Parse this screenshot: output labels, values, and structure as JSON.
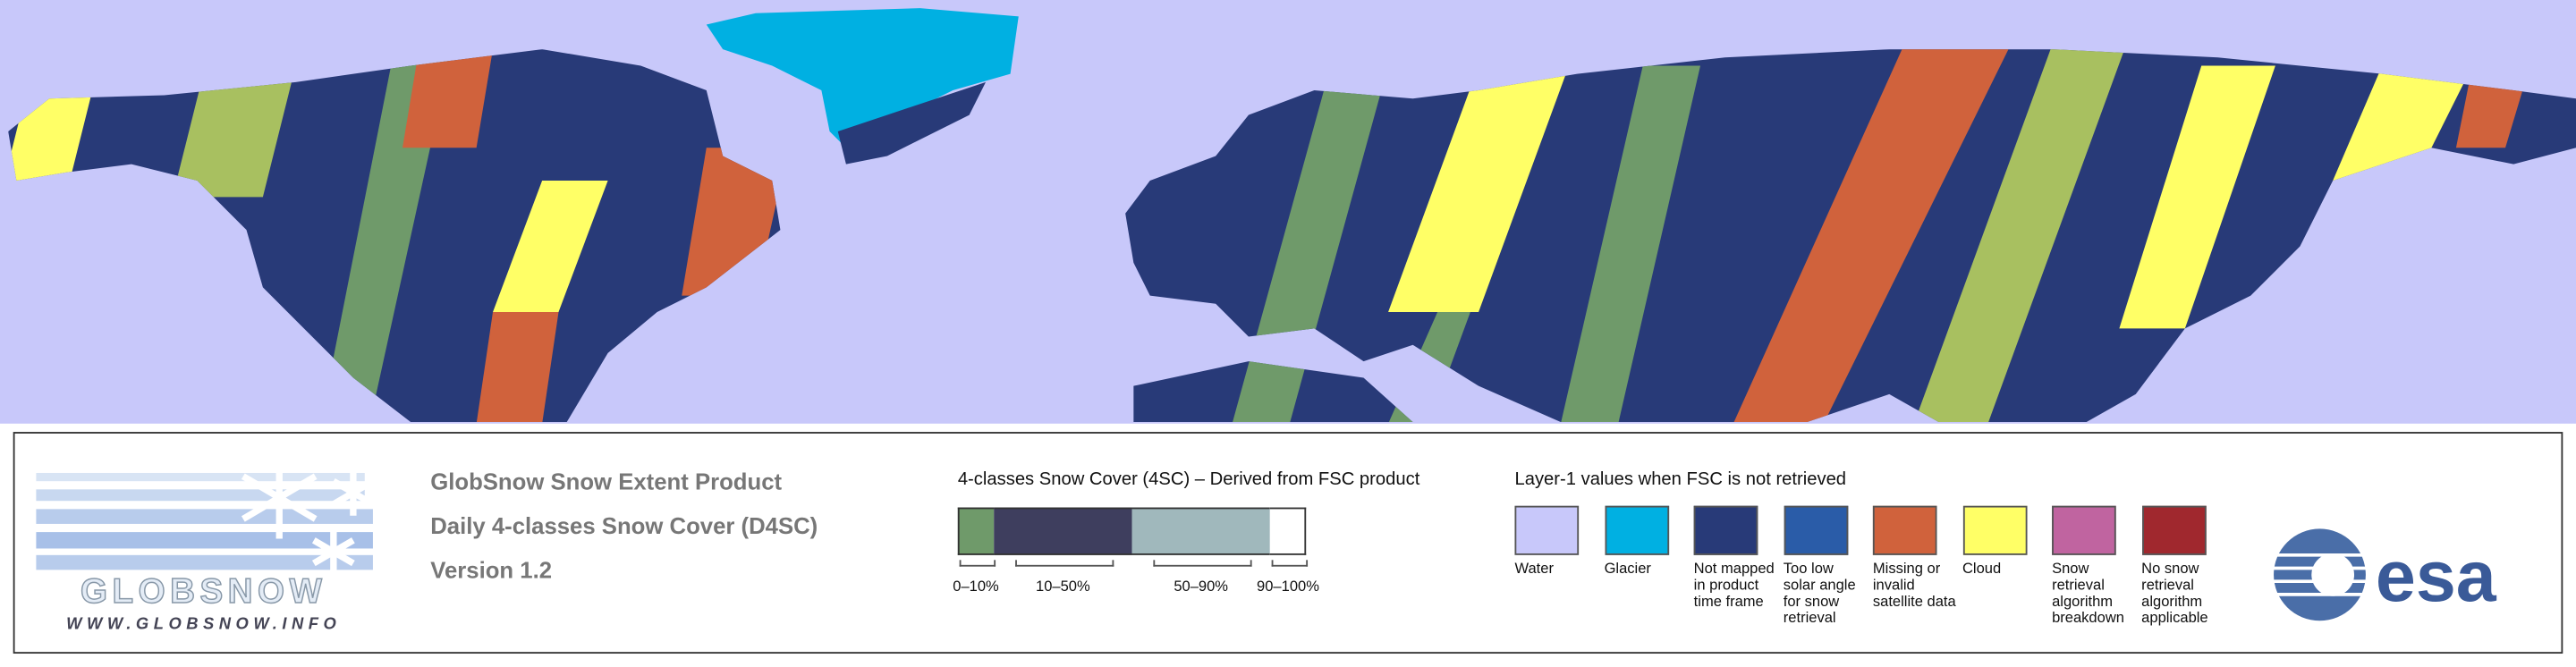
{
  "legend": {
    "logo": {
      "name": "GLOBSNOW",
      "url": "WWW.GLOBSNOW.INFO"
    },
    "product": {
      "lines": [
        "GlobSnow Snow Extent Product",
        "Daily 4-classes Snow Cover (D4SC)",
        "Version 1.2"
      ]
    },
    "classes_4sc": {
      "title": "4-classes Snow Cover (4SC) – Derived from FSC product",
      "items": [
        {
          "label": "0–10%",
          "color": "#6f9a6a"
        },
        {
          "label": "10–50%",
          "color": "#3e3e5e"
        },
        {
          "label": "50–90%",
          "color": "#a0b8bc"
        },
        {
          "label": "90–100%",
          "color": "#ffffff"
        }
      ]
    },
    "layer1": {
      "title": "Layer-1 values when FSC is not retrieved",
      "items": [
        {
          "label": "Water",
          "color": "#c8c8fa"
        },
        {
          "label": "Glacier",
          "color": "#00b0e2"
        },
        {
          "label": "Not mapped in product time frame",
          "color": "#283a78"
        },
        {
          "label": "Too low solar angle for snow retrieval",
          "color": "#2a5ca8"
        },
        {
          "label": "Missing or invalid satellite data",
          "color": "#d0623c"
        },
        {
          "label": "Cloud",
          "color": "#ffff66"
        },
        {
          "label": "Snow retrieval algorithm breakdown",
          "color": "#c064a0"
        },
        {
          "label": "No snow retrieval algorithm applicable",
          "color": "#a0282e"
        }
      ]
    },
    "agency": "esa"
  }
}
